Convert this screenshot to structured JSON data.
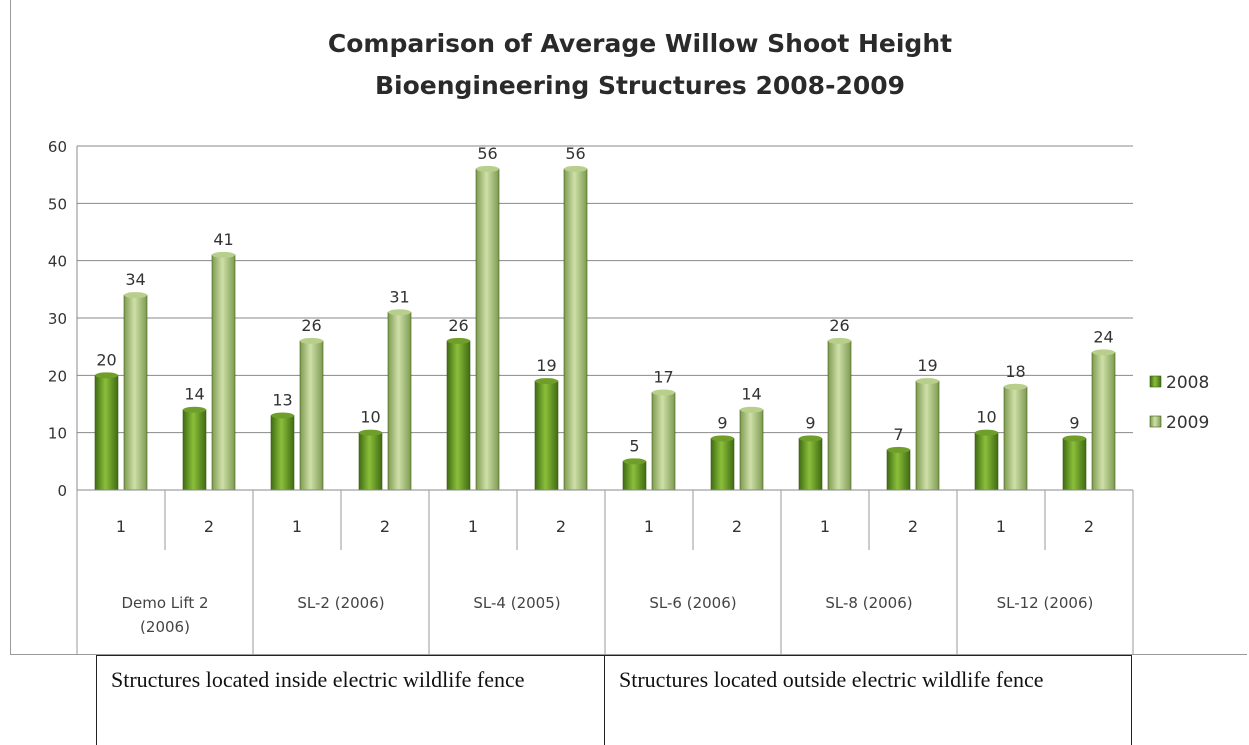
{
  "chart_data": {
    "type": "bar",
    "title_line1": "Comparison of Average Willow Shoot Height",
    "title_line2": "Bioengineering Structures 2008-2009",
    "ylim": [
      0,
      60
    ],
    "yticks": [
      "0",
      "10",
      "20",
      "30",
      "40",
      "50",
      "60"
    ],
    "groups": [
      {
        "name": "Demo Lift 2",
        "name2": "(2006)",
        "categories": [
          "1",
          "2"
        ]
      },
      {
        "name": "SL-2 (2006)",
        "name2": "",
        "categories": [
          "1",
          "2"
        ]
      },
      {
        "name": "SL-4 (2005)",
        "name2": "",
        "categories": [
          "1",
          "2"
        ]
      },
      {
        "name": "SL-6 (2006)",
        "name2": "",
        "categories": [
          "1",
          "2"
        ]
      },
      {
        "name": "SL-8 (2006)",
        "name2": "",
        "categories": [
          "1",
          "2"
        ]
      },
      {
        "name": "SL-12 (2006)",
        "name2": "",
        "categories": [
          "1",
          "2"
        ]
      }
    ],
    "series": [
      {
        "name": "2008",
        "values": [
          20,
          14,
          13,
          10,
          26,
          19,
          5,
          9,
          9,
          7,
          10,
          9
        ],
        "color": "#5a8a1f"
      },
      {
        "name": "2009",
        "values": [
          34,
          41,
          26,
          31,
          56,
          56,
          17,
          14,
          26,
          19,
          18,
          24
        ],
        "color": "#a7c07a"
      }
    ],
    "grid": true,
    "legend_position": "right"
  },
  "fence": {
    "inside": "Structures located inside electric wildlife fence",
    "outside": "Structures located outside electric wildlife fence"
  }
}
